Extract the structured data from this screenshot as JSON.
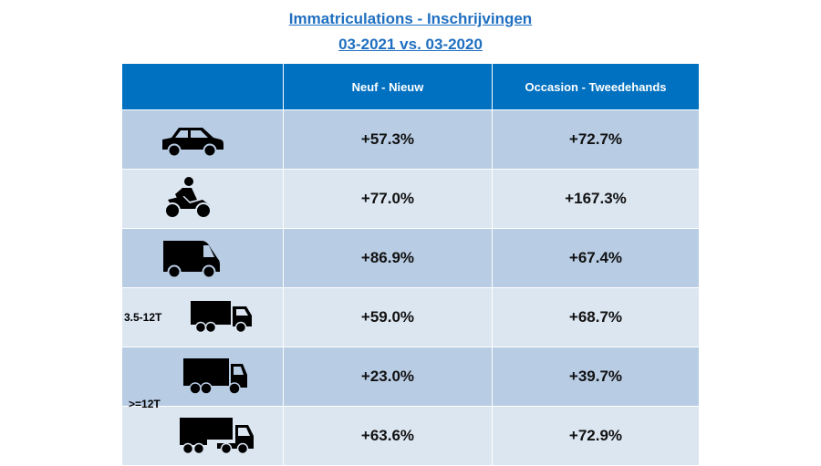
{
  "title": "Immatriculations - Inschrijvingen",
  "subtitle": "03-2021 vs. 03-2020",
  "columns": [
    "",
    "Neuf - Nieuw",
    "Occasion - Tweedehands"
  ],
  "weight_labels": {
    "light_truck": "3.5-12T",
    "heavy_truck": ">=12T"
  },
  "rows": [
    {
      "icon": "car-icon",
      "new": "+57.3%",
      "used": "+72.7%"
    },
    {
      "icon": "motorcycle-icon",
      "new": "+77.0%",
      "used": "+167.3%"
    },
    {
      "icon": "van-icon",
      "new": "+86.9%",
      "used": "+67.4%"
    },
    {
      "icon": "light-truck-icon",
      "new": "+59.0%",
      "used": "+68.7%"
    },
    {
      "icon": "heavy-truck-icon",
      "new": "+23.0%",
      "used": "+39.7%"
    },
    {
      "icon": "semi-truck-icon",
      "new": "+63.6%",
      "used": "+72.9%"
    }
  ],
  "colors": {
    "header": "#0070C0",
    "row_dark": "#B8CCE4",
    "row_light": "#DCE6F1",
    "title": "#1F6FC0"
  }
}
